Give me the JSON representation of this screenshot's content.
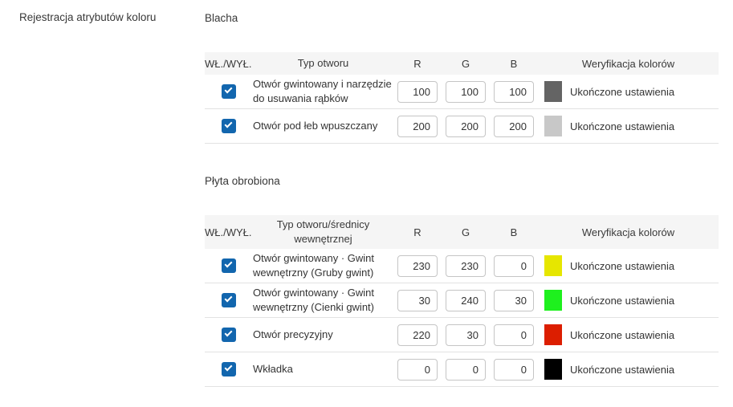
{
  "page": {
    "left_label": "Rejestracja atrybutów koloru"
  },
  "colors": {
    "accent_checkbox": "#1266ae",
    "header_bg": "#f5f5f5",
    "row_border": "#e2e2e2"
  },
  "sections": [
    {
      "title": "Blacha",
      "columns": {
        "toggle": "WŁ./WYŁ.",
        "type": "Typ otworu",
        "r": "R",
        "g": "G",
        "b": "B",
        "verify": "Weryfikacja kolorów"
      },
      "rows": [
        {
          "enabled": true,
          "type": "Otwór gwintowany i narzędzie do usuwania rąbków",
          "r": "100",
          "g": "100",
          "b": "100",
          "swatch": "#646464",
          "status": "Ukończone ustawienia"
        },
        {
          "enabled": true,
          "type": "Otwór pod łeb wpuszczany",
          "r": "200",
          "g": "200",
          "b": "200",
          "swatch": "#c8c8c8",
          "status": "Ukończone ustawienia"
        }
      ]
    },
    {
      "title": "Płyta obrobiona",
      "columns": {
        "toggle": "WŁ./WYŁ.",
        "type": "Typ otworu/średnicy wewnętrznej",
        "r": "R",
        "g": "G",
        "b": "B",
        "verify": "Weryfikacja kolorów"
      },
      "rows": [
        {
          "enabled": true,
          "type": "Otwór gwintowany · Gwint wewnętrzny (Gruby gwint)",
          "r": "230",
          "g": "230",
          "b": "0",
          "swatch": "#e6e600",
          "status": "Ukończone ustawienia"
        },
        {
          "enabled": true,
          "type": "Otwór gwintowany · Gwint wewnętrzny (Cienki gwint)",
          "r": "30",
          "g": "240",
          "b": "30",
          "swatch": "#1ef01e",
          "status": "Ukończone ustawienia"
        },
        {
          "enabled": true,
          "type": "Otwór precyzyjny",
          "r": "220",
          "g": "30",
          "b": "0",
          "swatch": "#dc1e00",
          "status": "Ukończone ustawienia"
        },
        {
          "enabled": true,
          "type": "Wkładka",
          "r": "0",
          "g": "0",
          "b": "0",
          "swatch": "#000000",
          "status": "Ukończone ustawienia"
        }
      ]
    }
  ]
}
